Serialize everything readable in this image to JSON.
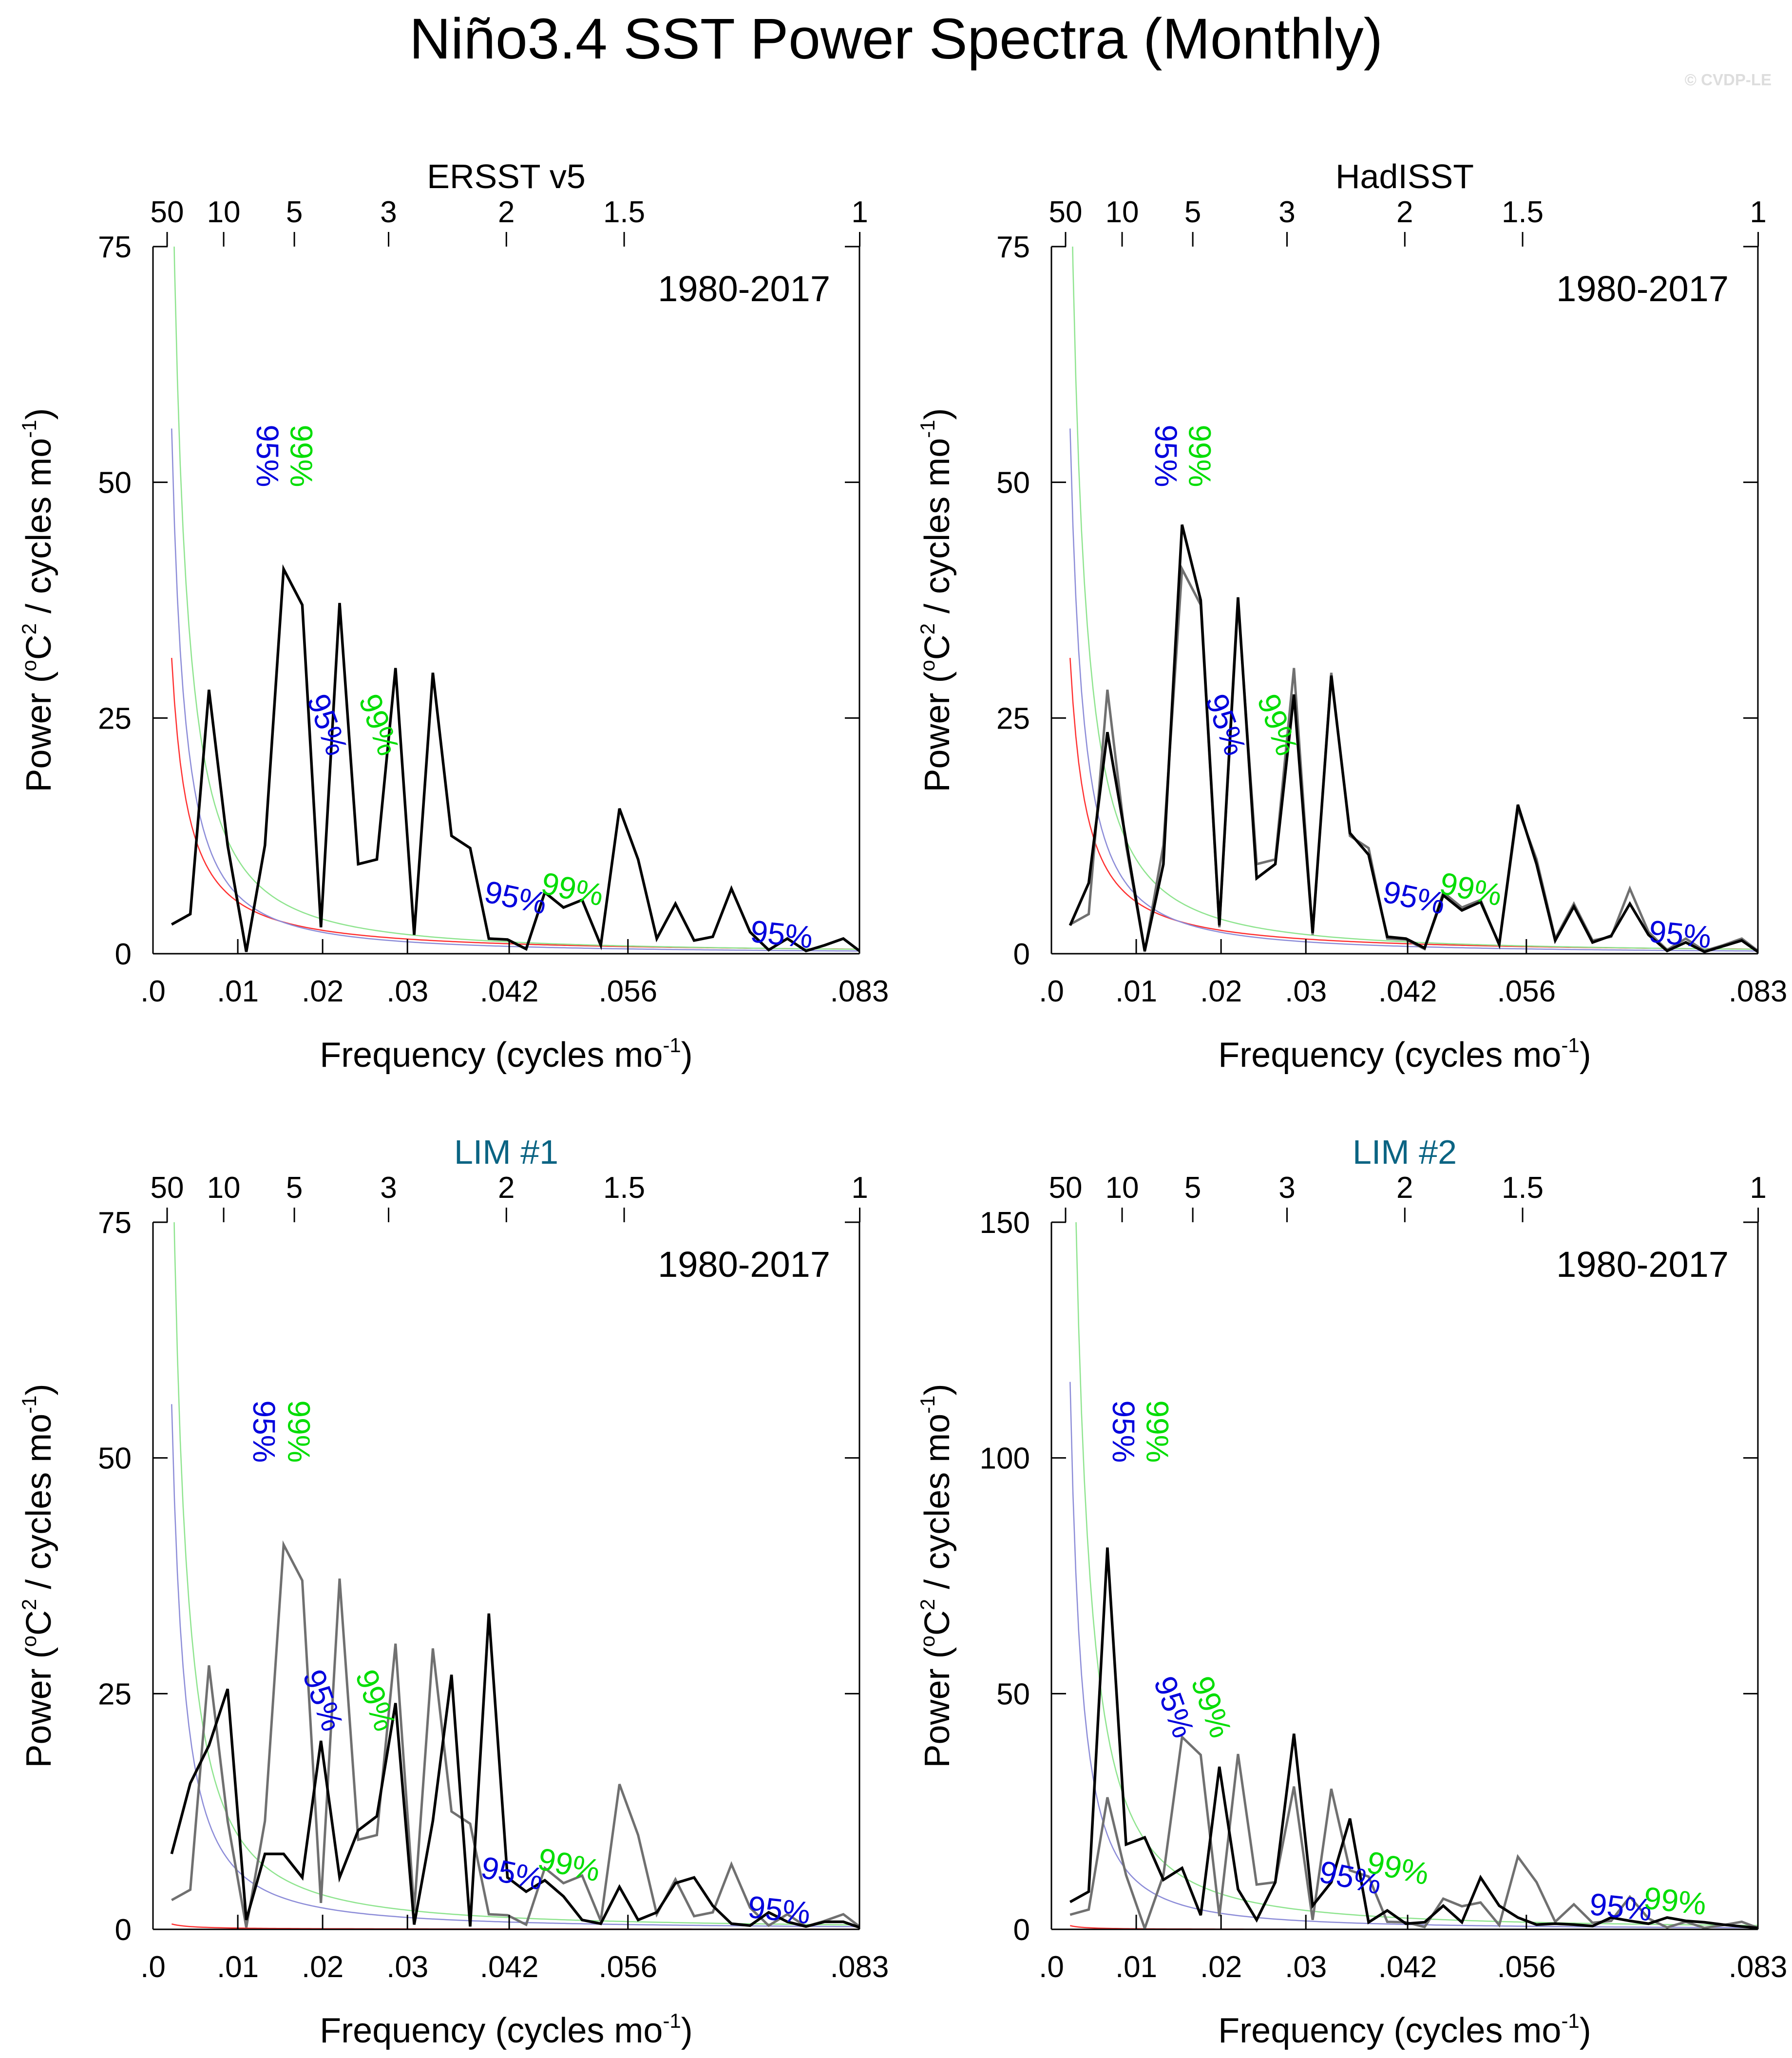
{
  "figure": {
    "title": "Niño3.4 SST Power Spectra (Monthly)",
    "credit": "© CVDP-LE"
  },
  "colors": {
    "primary": "#000000",
    "reference": "#707070",
    "red_noise": "#ff3030",
    "conf95": "#8c8cd8",
    "conf99": "#8ee48e",
    "label95": "#0000dd",
    "label99": "#00dd00",
    "title_obs": "#000000",
    "title_model": "#0b6483"
  },
  "chart_data": [
    {
      "type": "line",
      "title": "ERSST v5",
      "is_model": false,
      "period_label": "1980-2017",
      "xlabel": "Frequency (cycles mo",
      "xlabel_sup": "-1",
      "xlabel_close": ")",
      "ylabel": "Power (",
      "ylabel_sup1": "o",
      "ylabel_mid": "C",
      "ylabel_sup2": "2",
      "ylabel_end": " / cycles mo",
      "ylabel_sup3": "-1",
      "ylabel_close": ")",
      "xlim": [
        0,
        0.0833
      ],
      "ylim": [
        0,
        75
      ],
      "yticks": [
        0,
        25,
        50,
        75
      ],
      "xticks": [
        {
          "v": 0.0,
          "label": ".0"
        },
        {
          "v": 0.01,
          "label": ".01"
        },
        {
          "v": 0.02,
          "label": ".02"
        },
        {
          "v": 0.03,
          "label": ".03"
        },
        {
          "v": 0.042,
          "label": ".042"
        },
        {
          "v": 0.056,
          "label": ".056"
        },
        {
          "v": 0.0833,
          "label": ".083"
        }
      ],
      "top_ticks": [
        {
          "v": 0.001667,
          "label": "50"
        },
        {
          "v": 0.008333,
          "label": "10"
        },
        {
          "v": 0.016667,
          "label": "5"
        },
        {
          "v": 0.027778,
          "label": "3"
        },
        {
          "v": 0.041667,
          "label": "2"
        },
        {
          "v": 0.055556,
          "label": "1.5"
        },
        {
          "v": 0.083333,
          "label": "1"
        }
      ],
      "x": [
        0.0022,
        0.0044,
        0.0066,
        0.0088,
        0.011,
        0.0132,
        0.0154,
        0.0176,
        0.0198,
        0.022,
        0.0242,
        0.0264,
        0.0286,
        0.0308,
        0.033,
        0.0352,
        0.0374,
        0.0396,
        0.0418,
        0.044,
        0.0462,
        0.0484,
        0.0506,
        0.0528,
        0.055,
        0.0572,
        0.0594,
        0.0616,
        0.0638,
        0.066,
        0.0682,
        0.0704,
        0.0726,
        0.0748,
        0.077,
        0.0792,
        0.0814,
        0.0833
      ],
      "series": [
        {
          "name": "ERSST v5",
          "role": "primary",
          "values": [
            3.1,
            4.2,
            28.0,
            11.5,
            0.2,
            11.5,
            40.8,
            37.0,
            2.8,
            37.2,
            9.5,
            10.0,
            30.3,
            2.0,
            29.8,
            12.5,
            11.2,
            1.6,
            1.5,
            0.5,
            6.5,
            4.9,
            5.7,
            0.9,
            15.4,
            10.0,
            1.6,
            5.3,
            1.4,
            1.8,
            6.9,
            2.3,
            0.4,
            1.6,
            0.3,
            0.9,
            1.6,
            0.3
          ]
        }
      ],
      "curves": {
        "red_a": 5.5,
        "red_b": -1.15,
        "c95_a": 6.2,
        "c95_b": -1.45,
        "c99_a": 10.0,
        "c99_b": -1.45
      },
      "conf_labels": [
        {
          "text": "95%",
          "kind": "95",
          "x": 0.0132,
          "y": 52.8,
          "rot": 90
        },
        {
          "text": "99%",
          "kind": "99",
          "x": 0.0172,
          "y": 52.8,
          "rot": 90
        },
        {
          "text": "95%",
          "kind": "95",
          "x": 0.0203,
          "y": 24.2,
          "rot": 70
        },
        {
          "text": "99%",
          "kind": "99",
          "x": 0.0264,
          "y": 24.2,
          "rot": 70
        },
        {
          "text": "95%",
          "kind": "95",
          "x": 0.0427,
          "y": 5.7,
          "rot": 12
        },
        {
          "text": "99%",
          "kind": "99",
          "x": 0.0494,
          "y": 6.6,
          "rot": 12
        },
        {
          "text": "95%",
          "kind": "95",
          "x": 0.0741,
          "y": 1.8,
          "rot": 6
        }
      ]
    },
    {
      "type": "line",
      "title": "HadISST",
      "is_model": false,
      "period_label": "1980-2017",
      "xlabel": "Frequency (cycles mo",
      "xlabel_sup": "-1",
      "xlabel_close": ")",
      "ylabel": "Power (",
      "ylabel_sup1": "o",
      "ylabel_mid": "C",
      "ylabel_sup2": "2",
      "ylabel_end": " / cycles mo",
      "ylabel_sup3": "-1",
      "ylabel_close": ")",
      "xlim": [
        0,
        0.0833
      ],
      "ylim": [
        0,
        75
      ],
      "yticks": [
        0,
        25,
        50,
        75
      ],
      "xticks": [
        {
          "v": 0.0,
          "label": ".0"
        },
        {
          "v": 0.01,
          "label": ".01"
        },
        {
          "v": 0.02,
          "label": ".02"
        },
        {
          "v": 0.03,
          "label": ".03"
        },
        {
          "v": 0.042,
          "label": ".042"
        },
        {
          "v": 0.056,
          "label": ".056"
        },
        {
          "v": 0.0833,
          "label": ".083"
        }
      ],
      "top_ticks": [
        {
          "v": 0.001667,
          "label": "50"
        },
        {
          "v": 0.008333,
          "label": "10"
        },
        {
          "v": 0.016667,
          "label": "5"
        },
        {
          "v": 0.027778,
          "label": "3"
        },
        {
          "v": 0.041667,
          "label": "2"
        },
        {
          "v": 0.055556,
          "label": "1.5"
        },
        {
          "v": 0.083333,
          "label": "1"
        }
      ],
      "x": [
        0.0022,
        0.0044,
        0.0066,
        0.0088,
        0.011,
        0.0132,
        0.0154,
        0.0176,
        0.0198,
        0.022,
        0.0242,
        0.0264,
        0.0286,
        0.0308,
        0.033,
        0.0352,
        0.0374,
        0.0396,
        0.0418,
        0.044,
        0.0462,
        0.0484,
        0.0506,
        0.0528,
        0.055,
        0.0572,
        0.0594,
        0.0616,
        0.0638,
        0.066,
        0.0682,
        0.0704,
        0.0726,
        0.0748,
        0.077,
        0.0792,
        0.0814,
        0.0833
      ],
      "series": [
        {
          "name": "ERSST v5",
          "role": "reference",
          "values": [
            3.1,
            4.2,
            28.0,
            11.5,
            0.2,
            11.5,
            40.8,
            37.0,
            2.8,
            37.2,
            9.5,
            10.0,
            30.3,
            2.0,
            29.8,
            12.5,
            11.2,
            1.6,
            1.5,
            0.5,
            6.5,
            4.9,
            5.7,
            0.9,
            15.4,
            10.0,
            1.6,
            5.3,
            1.4,
            1.8,
            6.9,
            2.3,
            0.4,
            1.6,
            0.3,
            0.9,
            1.6,
            0.3
          ]
        },
        {
          "name": "HadISST",
          "role": "primary",
          "values": [
            3.0,
            7.5,
            23.5,
            12.0,
            0.3,
            9.5,
            45.5,
            37.5,
            3.0,
            37.8,
            8.0,
            9.5,
            27.5,
            2.2,
            29.5,
            12.8,
            10.5,
            1.8,
            1.6,
            0.6,
            6.2,
            4.6,
            5.5,
            1.0,
            15.8,
            9.5,
            1.4,
            5.0,
            1.2,
            1.9,
            5.3,
            2.0,
            0.3,
            1.2,
            0.2,
            0.8,
            1.4,
            0.2
          ]
        }
      ],
      "curves": {
        "red_a": 5.5,
        "red_b": -1.15,
        "c95_a": 6.2,
        "c95_b": -1.45,
        "c99_a": 10.0,
        "c99_b": -1.45
      },
      "conf_labels": [
        {
          "text": "95%",
          "kind": "95",
          "x": 0.0132,
          "y": 52.8,
          "rot": 90
        },
        {
          "text": "99%",
          "kind": "99",
          "x": 0.0172,
          "y": 52.8,
          "rot": 90
        },
        {
          "text": "95%",
          "kind": "95",
          "x": 0.0203,
          "y": 24.2,
          "rot": 70
        },
        {
          "text": "99%",
          "kind": "99",
          "x": 0.0264,
          "y": 24.2,
          "rot": 70
        },
        {
          "text": "95%",
          "kind": "95",
          "x": 0.0427,
          "y": 5.7,
          "rot": 12
        },
        {
          "text": "99%",
          "kind": "99",
          "x": 0.0494,
          "y": 6.6,
          "rot": 12
        },
        {
          "text": "95%",
          "kind": "95",
          "x": 0.0741,
          "y": 1.8,
          "rot": 6
        }
      ]
    },
    {
      "type": "line",
      "title": "LIM #1",
      "is_model": true,
      "period_label": "1980-2017",
      "xlabel": "Frequency (cycles mo",
      "xlabel_sup": "-1",
      "xlabel_close": ")",
      "ylabel": "Power (",
      "ylabel_sup1": "o",
      "ylabel_mid": "C",
      "ylabel_sup2": "2",
      "ylabel_end": " / cycles mo",
      "ylabel_sup3": "-1",
      "ylabel_close": ")",
      "xlim": [
        0,
        0.0833
      ],
      "ylim": [
        0,
        75
      ],
      "yticks": [
        0,
        25,
        50,
        75
      ],
      "xticks": [
        {
          "v": 0.0,
          "label": ".0"
        },
        {
          "v": 0.01,
          "label": ".01"
        },
        {
          "v": 0.02,
          "label": ".02"
        },
        {
          "v": 0.03,
          "label": ".03"
        },
        {
          "v": 0.042,
          "label": ".042"
        },
        {
          "v": 0.056,
          "label": ".056"
        },
        {
          "v": 0.0833,
          "label": ".083"
        }
      ],
      "top_ticks": [
        {
          "v": 0.001667,
          "label": "50"
        },
        {
          "v": 0.008333,
          "label": "10"
        },
        {
          "v": 0.016667,
          "label": "5"
        },
        {
          "v": 0.027778,
          "label": "3"
        },
        {
          "v": 0.041667,
          "label": "2"
        },
        {
          "v": 0.055556,
          "label": "1.5"
        },
        {
          "v": 0.083333,
          "label": "1"
        }
      ],
      "x": [
        0.0022,
        0.0044,
        0.0066,
        0.0088,
        0.011,
        0.0132,
        0.0154,
        0.0176,
        0.0198,
        0.022,
        0.0242,
        0.0264,
        0.0286,
        0.0308,
        0.033,
        0.0352,
        0.0374,
        0.0396,
        0.0418,
        0.044,
        0.0462,
        0.0484,
        0.0506,
        0.0528,
        0.055,
        0.0572,
        0.0594,
        0.0616,
        0.0638,
        0.066,
        0.0682,
        0.0704,
        0.0726,
        0.0748,
        0.077,
        0.0792,
        0.0814,
        0.0833
      ],
      "series": [
        {
          "name": "ERSST v5",
          "role": "reference",
          "values": [
            3.1,
            4.2,
            28.0,
            11.5,
            0.2,
            11.5,
            40.8,
            37.0,
            2.8,
            37.2,
            9.5,
            10.0,
            30.3,
            2.0,
            29.8,
            12.5,
            11.2,
            1.6,
            1.5,
            0.5,
            6.5,
            4.9,
            5.7,
            0.9,
            15.4,
            10.0,
            1.6,
            5.3,
            1.4,
            1.8,
            6.9,
            2.3,
            0.4,
            1.6,
            0.3,
            0.9,
            1.6,
            0.3
          ]
        },
        {
          "name": "LIM #1",
          "role": "primary",
          "values": [
            8.0,
            15.5,
            19.5,
            25.5,
            1.0,
            8.0,
            8.0,
            5.5,
            20.0,
            5.5,
            10.5,
            12.0,
            24.0,
            0.5,
            11.5,
            27.0,
            0.3,
            33.5,
            5.5,
            4.0,
            5.2,
            3.5,
            1.0,
            0.6,
            4.5,
            1.0,
            1.8,
            4.9,
            5.5,
            2.5,
            0.6,
            0.4,
            1.8,
            0.8,
            0.3,
            0.8,
            0.8,
            0.2
          ]
        }
      ],
      "curves": {
        "red_a": 0.135,
        "red_b": -0.95,
        "c95_a": 6.2,
        "c95_b": -1.45,
        "c99_a": 10.0,
        "c99_b": -1.45
      },
      "conf_labels": [
        {
          "text": "95%",
          "kind": "95",
          "x": 0.0128,
          "y": 52.8,
          "rot": 90
        },
        {
          "text": "99%",
          "kind": "99",
          "x": 0.0169,
          "y": 52.8,
          "rot": 90
        },
        {
          "text": "95%",
          "kind": "95",
          "x": 0.0198,
          "y": 24.2,
          "rot": 70
        },
        {
          "text": "99%",
          "kind": "99",
          "x": 0.026,
          "y": 24.2,
          "rot": 70
        },
        {
          "text": "95%",
          "kind": "95",
          "x": 0.0423,
          "y": 5.7,
          "rot": 12
        },
        {
          "text": "99%",
          "kind": "99",
          "x": 0.049,
          "y": 6.6,
          "rot": 12
        },
        {
          "text": "95%",
          "kind": "95",
          "x": 0.0738,
          "y": 1.8,
          "rot": 6
        }
      ]
    },
    {
      "type": "line",
      "title": "LIM #2",
      "is_model": true,
      "period_label": "1980-2017",
      "xlabel": "Frequency (cycles mo",
      "xlabel_sup": "-1",
      "xlabel_close": ")",
      "ylabel": "Power (",
      "ylabel_sup1": "o",
      "ylabel_mid": "C",
      "ylabel_sup2": "2",
      "ylabel_end": " / cycles mo",
      "ylabel_sup3": "-1",
      "ylabel_close": ")",
      "xlim": [
        0,
        0.0833
      ],
      "ylim": [
        0,
        150
      ],
      "yticks": [
        0,
        50,
        100,
        150
      ],
      "xticks": [
        {
          "v": 0.0,
          "label": ".0"
        },
        {
          "v": 0.01,
          "label": ".01"
        },
        {
          "v": 0.02,
          "label": ".02"
        },
        {
          "v": 0.03,
          "label": ".03"
        },
        {
          "v": 0.042,
          "label": ".042"
        },
        {
          "v": 0.056,
          "label": ".056"
        },
        {
          "v": 0.0833,
          "label": ".083"
        }
      ],
      "top_ticks": [
        {
          "v": 0.001667,
          "label": "50"
        },
        {
          "v": 0.008333,
          "label": "10"
        },
        {
          "v": 0.016667,
          "label": "5"
        },
        {
          "v": 0.027778,
          "label": "3"
        },
        {
          "v": 0.041667,
          "label": "2"
        },
        {
          "v": 0.055556,
          "label": "1.5"
        },
        {
          "v": 0.083333,
          "label": "1"
        }
      ],
      "x": [
        0.0022,
        0.0044,
        0.0066,
        0.0088,
        0.011,
        0.0132,
        0.0154,
        0.0176,
        0.0198,
        0.022,
        0.0242,
        0.0264,
        0.0286,
        0.0308,
        0.033,
        0.0352,
        0.0374,
        0.0396,
        0.0418,
        0.044,
        0.0462,
        0.0484,
        0.0506,
        0.0528,
        0.055,
        0.0572,
        0.0594,
        0.0616,
        0.0638,
        0.066,
        0.0682,
        0.0704,
        0.0726,
        0.0748,
        0.077,
        0.0792,
        0.0814,
        0.0833
      ],
      "series": [
        {
          "name": "ERSST v5",
          "role": "reference",
          "values": [
            3.1,
            4.2,
            28.0,
            11.5,
            0.2,
            11.5,
            40.8,
            37.0,
            2.8,
            37.2,
            9.5,
            10.0,
            30.3,
            2.0,
            29.8,
            12.5,
            11.2,
            1.6,
            1.5,
            0.5,
            6.5,
            4.9,
            5.7,
            0.9,
            15.4,
            10.0,
            1.6,
            5.3,
            1.4,
            1.8,
            6.9,
            2.3,
            0.4,
            1.6,
            0.3,
            0.9,
            1.6,
            0.3
          ]
        },
        {
          "name": "LIM #2",
          "role": "primary",
          "values": [
            5.8,
            8.0,
            81.0,
            18.0,
            19.5,
            10.5,
            13.0,
            3.0,
            34.5,
            8.5,
            2.0,
            10.0,
            41.5,
            5.0,
            10.0,
            23.5,
            1.5,
            4.0,
            1.2,
            1.5,
            5.0,
            1.5,
            11.0,
            5.0,
            2.5,
            1.0,
            1.2,
            1.0,
            0.7,
            2.5,
            1.8,
            1.2,
            2.5,
            1.8,
            1.5,
            1.0,
            0.6,
            0.3
          ]
        }
      ],
      "curves": {
        "red_a": 0.125,
        "red_b": -1.21,
        "c95_a": 10.3,
        "c95_b": -1.6,
        "c99_a": 22.0,
        "c99_b": -1.55
      },
      "conf_labels": [
        {
          "text": "95%",
          "kind": "95",
          "x": 0.0082,
          "y": 105.6,
          "rot": 90
        },
        {
          "text": "99%",
          "kind": "99",
          "x": 0.0122,
          "y": 105.6,
          "rot": 90
        },
        {
          "text": "95%",
          "kind": "95",
          "x": 0.0142,
          "y": 47.0,
          "rot": 70
        },
        {
          "text": "99%",
          "kind": "99",
          "x": 0.0186,
          "y": 47.0,
          "rot": 70
        },
        {
          "text": "95%",
          "kind": "95",
          "x": 0.0352,
          "y": 10.5,
          "rot": 12
        },
        {
          "text": "99%",
          "kind": "99",
          "x": 0.0408,
          "y": 12.5,
          "rot": 12
        },
        {
          "text": "95%",
          "kind": "95",
          "x": 0.0671,
          "y": 4.2,
          "rot": 6
        },
        {
          "text": "99%",
          "kind": "99",
          "x": 0.0735,
          "y": 5.5,
          "rot": 6
        }
      ]
    }
  ]
}
